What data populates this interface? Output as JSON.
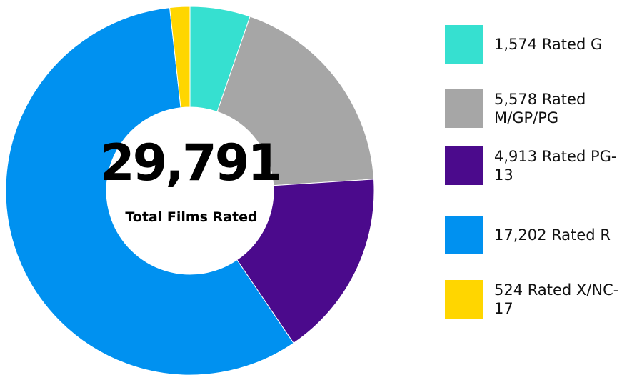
{
  "chart_data": {
    "type": "donut",
    "categories": [
      "1,574 Rated G",
      "5,578 Rated M/GP/PG",
      "4,913 Rated PG-13",
      "17,202 Rated R",
      "524 Rated X/NC-17"
    ],
    "values": [
      1574,
      5578,
      4913,
      17202,
      524
    ],
    "colors": [
      "#36e0d0",
      "#a6a6a6",
      "#4b0a8c",
      "#0091f0",
      "#ffd600"
    ],
    "center_label": "29,791",
    "center_caption": "Total Films Rated"
  }
}
